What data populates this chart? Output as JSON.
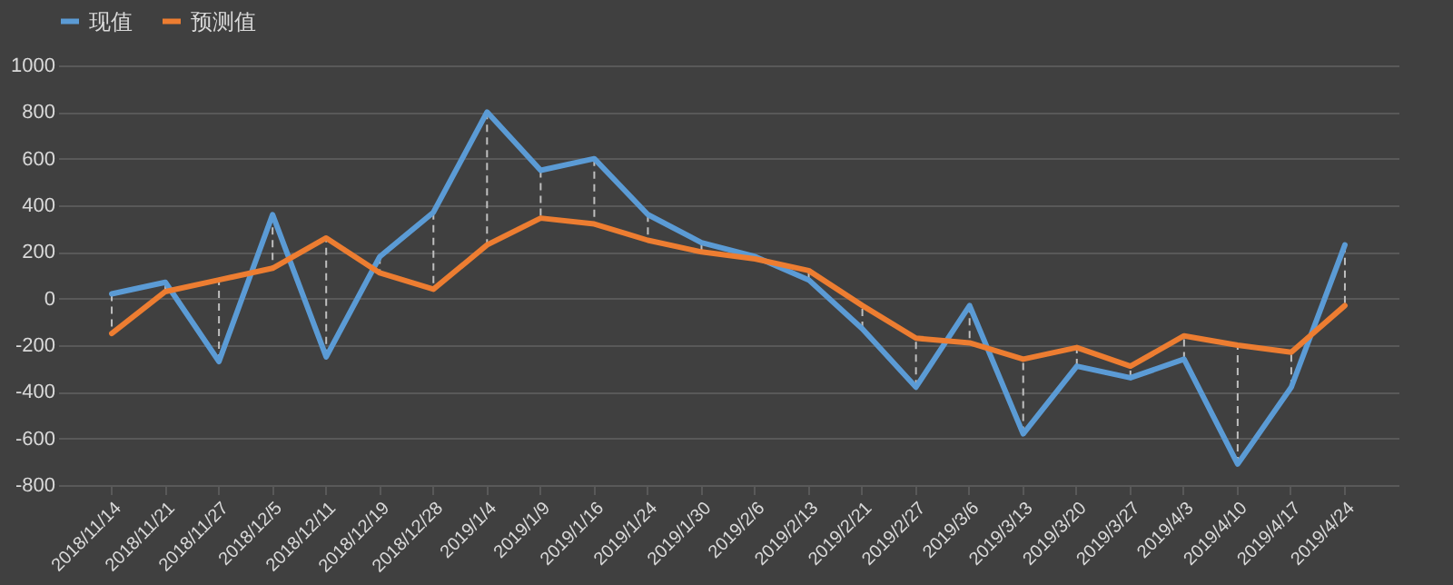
{
  "chart_data": {
    "type": "line",
    "categories": [
      "2018/11/14",
      "2018/11/21",
      "2018/11/27",
      "2018/12/5",
      "2018/12/11",
      "2018/12/19",
      "2018/12/28",
      "2019/1/4",
      "2019/1/9",
      "2019/1/16",
      "2019/1/24",
      "2019/1/30",
      "2019/2/6",
      "2019/2/13",
      "2019/2/21",
      "2019/2/27",
      "2019/3/6",
      "2019/3/13",
      "2019/3/20",
      "2019/3/27",
      "2019/4/3",
      "2019/4/10",
      "2019/4/17",
      "2019/4/24"
    ],
    "series": [
      {
        "name": "现值",
        "color": "#5b9bd5",
        "values": [
          20,
          70,
          -270,
          360,
          -250,
          180,
          370,
          800,
          550,
          600,
          360,
          240,
          180,
          80,
          -130,
          -380,
          -30,
          -580,
          -290,
          -340,
          -260,
          -710,
          -380,
          230
        ]
      },
      {
        "name": "预测值",
        "color": "#ed7d31",
        "values": [
          -150,
          30,
          80,
          130,
          260,
          110,
          40,
          230,
          345,
          320,
          250,
          200,
          170,
          120,
          -30,
          -170,
          -190,
          -260,
          -210,
          -290,
          -160,
          -200,
          -230,
          -30
        ]
      }
    ],
    "ylim": [
      -800,
      1000
    ],
    "yticks": [
      -800,
      -600,
      -400,
      -200,
      0,
      200,
      400,
      600,
      800,
      1000
    ],
    "grid": "y",
    "legend": "top",
    "line_style": "solid",
    "marker": "none"
  }
}
